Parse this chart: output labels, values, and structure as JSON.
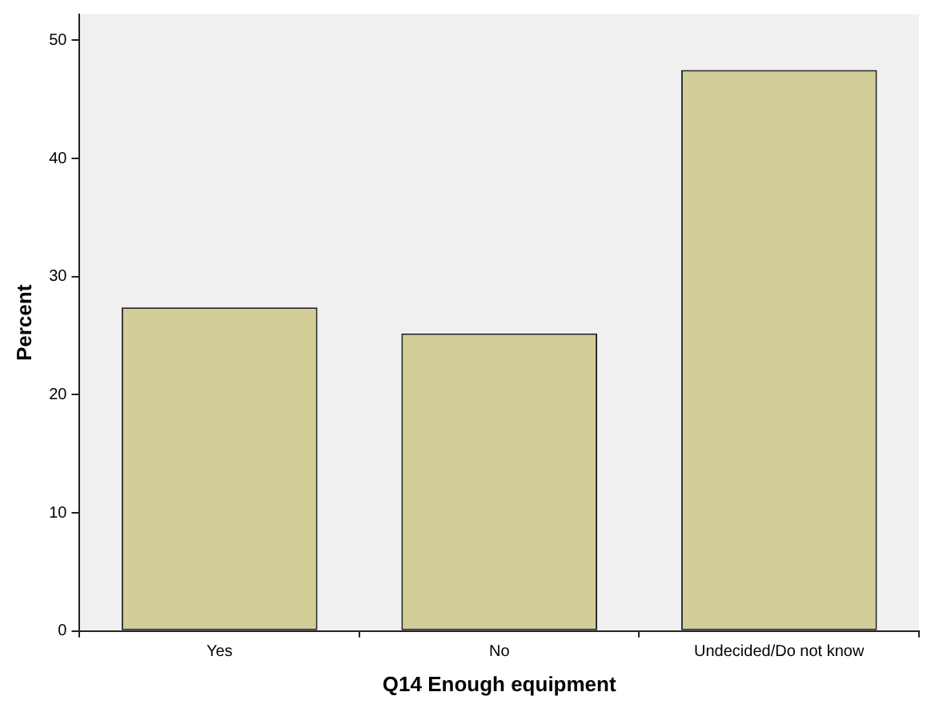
{
  "chart_data": {
    "type": "bar",
    "xlabel": "Q14 Enough equipment",
    "ylabel": "Percent",
    "categories": [
      "Yes",
      "No",
      "Undecided/Do not know"
    ],
    "values": [
      27.4,
      25.2,
      47.5
    ],
    "color": "#d3ce98",
    "ylim": [
      0,
      52.2
    ],
    "yticks": [
      0,
      10,
      20,
      30,
      40,
      50
    ],
    "grid": false,
    "legend": false
  }
}
